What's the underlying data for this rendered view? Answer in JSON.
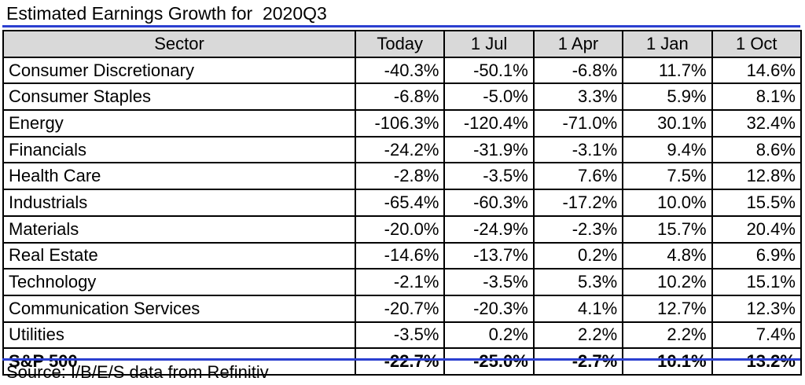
{
  "title": "Estimated Earnings Growth for  2020Q3",
  "source": "Source: I/B/E/S data from Refinitiv",
  "colors": {
    "rule": "#2b3fd0",
    "header_bg": "#d9d9d9",
    "border": "#000000"
  },
  "table": {
    "headers": [
      "Sector",
      "Today",
      "1 Jul",
      "1 Apr",
      "1 Jan",
      "1 Oct"
    ],
    "rows": [
      {
        "sector": "Consumer Discretionary",
        "values": [
          "-40.3%",
          "-50.1%",
          "-6.8%",
          "11.7%",
          "14.6%"
        ]
      },
      {
        "sector": "Consumer Staples",
        "values": [
          "-6.8%",
          "-5.0%",
          "3.3%",
          "5.9%",
          "8.1%"
        ]
      },
      {
        "sector": "Energy",
        "values": [
          "-106.3%",
          "-120.4%",
          "-71.0%",
          "30.1%",
          "32.4%"
        ]
      },
      {
        "sector": "Financials",
        "values": [
          "-24.2%",
          "-31.9%",
          "-3.1%",
          "9.4%",
          "8.6%"
        ]
      },
      {
        "sector": "Health Care",
        "values": [
          "-2.8%",
          "-3.5%",
          "7.6%",
          "7.5%",
          "12.8%"
        ]
      },
      {
        "sector": "Industrials",
        "values": [
          "-65.4%",
          "-60.3%",
          "-17.2%",
          "10.0%",
          "15.5%"
        ]
      },
      {
        "sector": "Materials",
        "values": [
          "-20.0%",
          "-24.9%",
          "-2.3%",
          "15.7%",
          "20.4%"
        ]
      },
      {
        "sector": "Real Estate",
        "values": [
          "-14.6%",
          "-13.7%",
          "0.2%",
          "4.8%",
          "6.9%"
        ]
      },
      {
        "sector": "Technology",
        "values": [
          "-2.1%",
          "-3.5%",
          "5.3%",
          "10.2%",
          "15.1%"
        ]
      },
      {
        "sector": "Communication Services",
        "values": [
          "-20.7%",
          "-20.3%",
          "4.1%",
          "12.7%",
          "12.3%"
        ]
      },
      {
        "sector": "Utilities",
        "values": [
          "-3.5%",
          "0.2%",
          "2.2%",
          "2.2%",
          "7.4%"
        ]
      }
    ],
    "total": {
      "sector": "S&P 500",
      "values": [
        "-22.7%",
        "-25.0%",
        "-2.7%",
        "10.1%",
        "13.2%"
      ]
    }
  }
}
